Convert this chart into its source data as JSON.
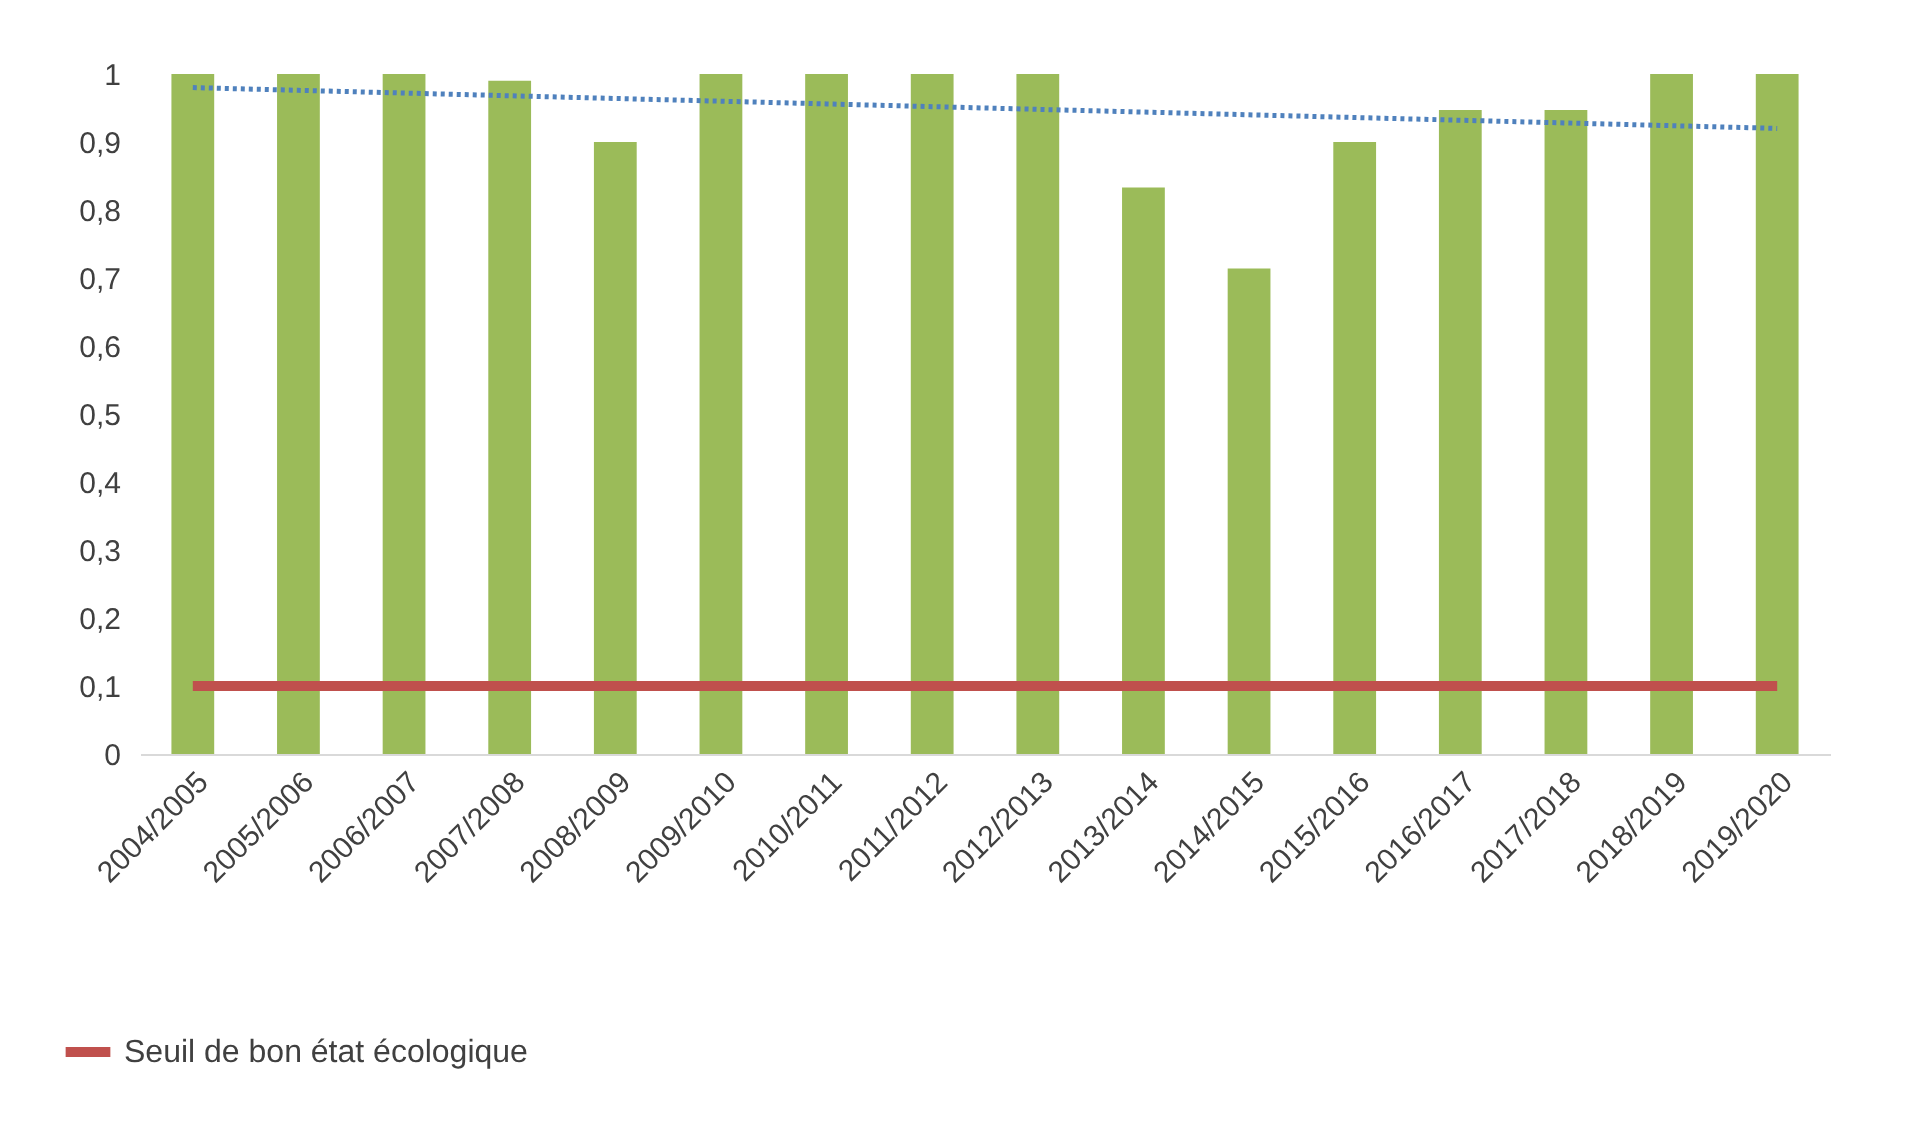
{
  "chart_data": {
    "type": "bar",
    "categories": [
      "2004/2005",
      "2005/2006",
      "2006/2007",
      "2007/2008",
      "2008/2009",
      "2009/2010",
      "2010/2011",
      "2011/2012",
      "2012/2013",
      "2013/2014",
      "2014/2015",
      "2015/2016",
      "2016/2017",
      "2017/2018",
      "2018/2019",
      "2019/2020"
    ],
    "series": [
      {
        "color": "#9bbb59",
        "values": [
          1,
          1,
          1,
          0.99,
          0.9,
          1,
          1,
          1,
          1,
          0.833,
          0.714,
          0.9,
          0.947,
          0.947,
          1,
          1
        ]
      },
      {
        "type": "line",
        "name": "Seuil de bon état écologique",
        "color": "#c0504d",
        "values": [
          0.1,
          0.1,
          0.1,
          0.1,
          0.1,
          0.1,
          0.1,
          0.1,
          0.1,
          0.1,
          0.1,
          0.1,
          0.1,
          0.1,
          0.1,
          0.1
        ]
      },
      {
        "type": "line",
        "color": "#4f81bd",
        "line_style": "dotted",
        "values": [
          0.98,
          0.976,
          0.972,
          0.968,
          0.964,
          0.96,
          0.956,
          0.952,
          0.948,
          0.944,
          0.94,
          0.936,
          0.932,
          0.928,
          0.924,
          0.92
        ]
      }
    ],
    "ylim": [
      0,
      1
    ],
    "yticks": [
      {
        "value": 0,
        "label": "0"
      },
      {
        "value": 0.1,
        "label": "0,1"
      },
      {
        "value": 0.2,
        "label": "0,2"
      },
      {
        "value": 0.3,
        "label": "0,3"
      },
      {
        "value": 0.4,
        "label": "0,4"
      },
      {
        "value": 0.5,
        "label": "0,5"
      },
      {
        "value": 0.6,
        "label": "0,6"
      },
      {
        "value": 0.7,
        "label": "0,7"
      },
      {
        "value": 0.8,
        "label": "0,8"
      },
      {
        "value": 0.9,
        "label": "0,9"
      },
      {
        "value": 1,
        "label": "1"
      }
    ],
    "grid": false,
    "legend": "bottom left"
  }
}
